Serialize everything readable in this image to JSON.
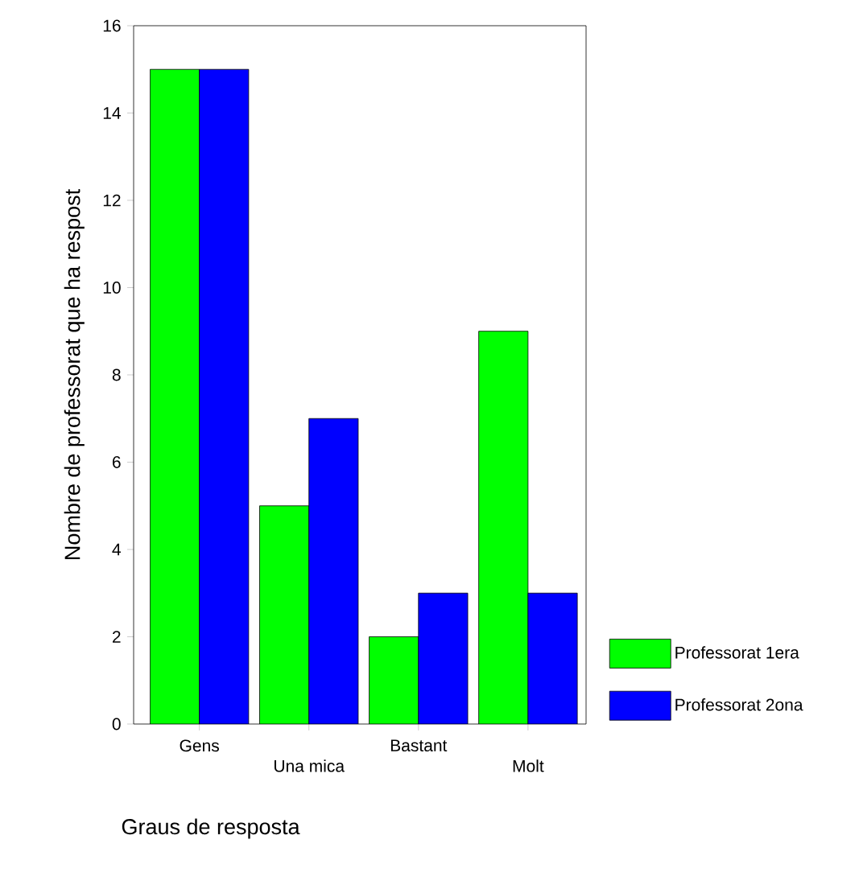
{
  "chart_data": {
    "type": "bar",
    "xlabel": "Graus de resposta",
    "ylabel": "Nombre de professorat que ha respost",
    "categories": [
      "Gens",
      "Una mica",
      "Bastant",
      "Molt"
    ],
    "series": [
      {
        "name": "Professorat 1era",
        "color": "#00ff00",
        "values": [
          15,
          5,
          2,
          9
        ]
      },
      {
        "name": "Professorat 2ona",
        "color": "#0000ff",
        "values": [
          15,
          7,
          3,
          3
        ]
      }
    ],
    "ylim": [
      0,
      16
    ],
    "yticks": [
      0,
      2,
      4,
      6,
      8,
      10,
      12,
      14,
      16
    ],
    "legend": "right"
  }
}
